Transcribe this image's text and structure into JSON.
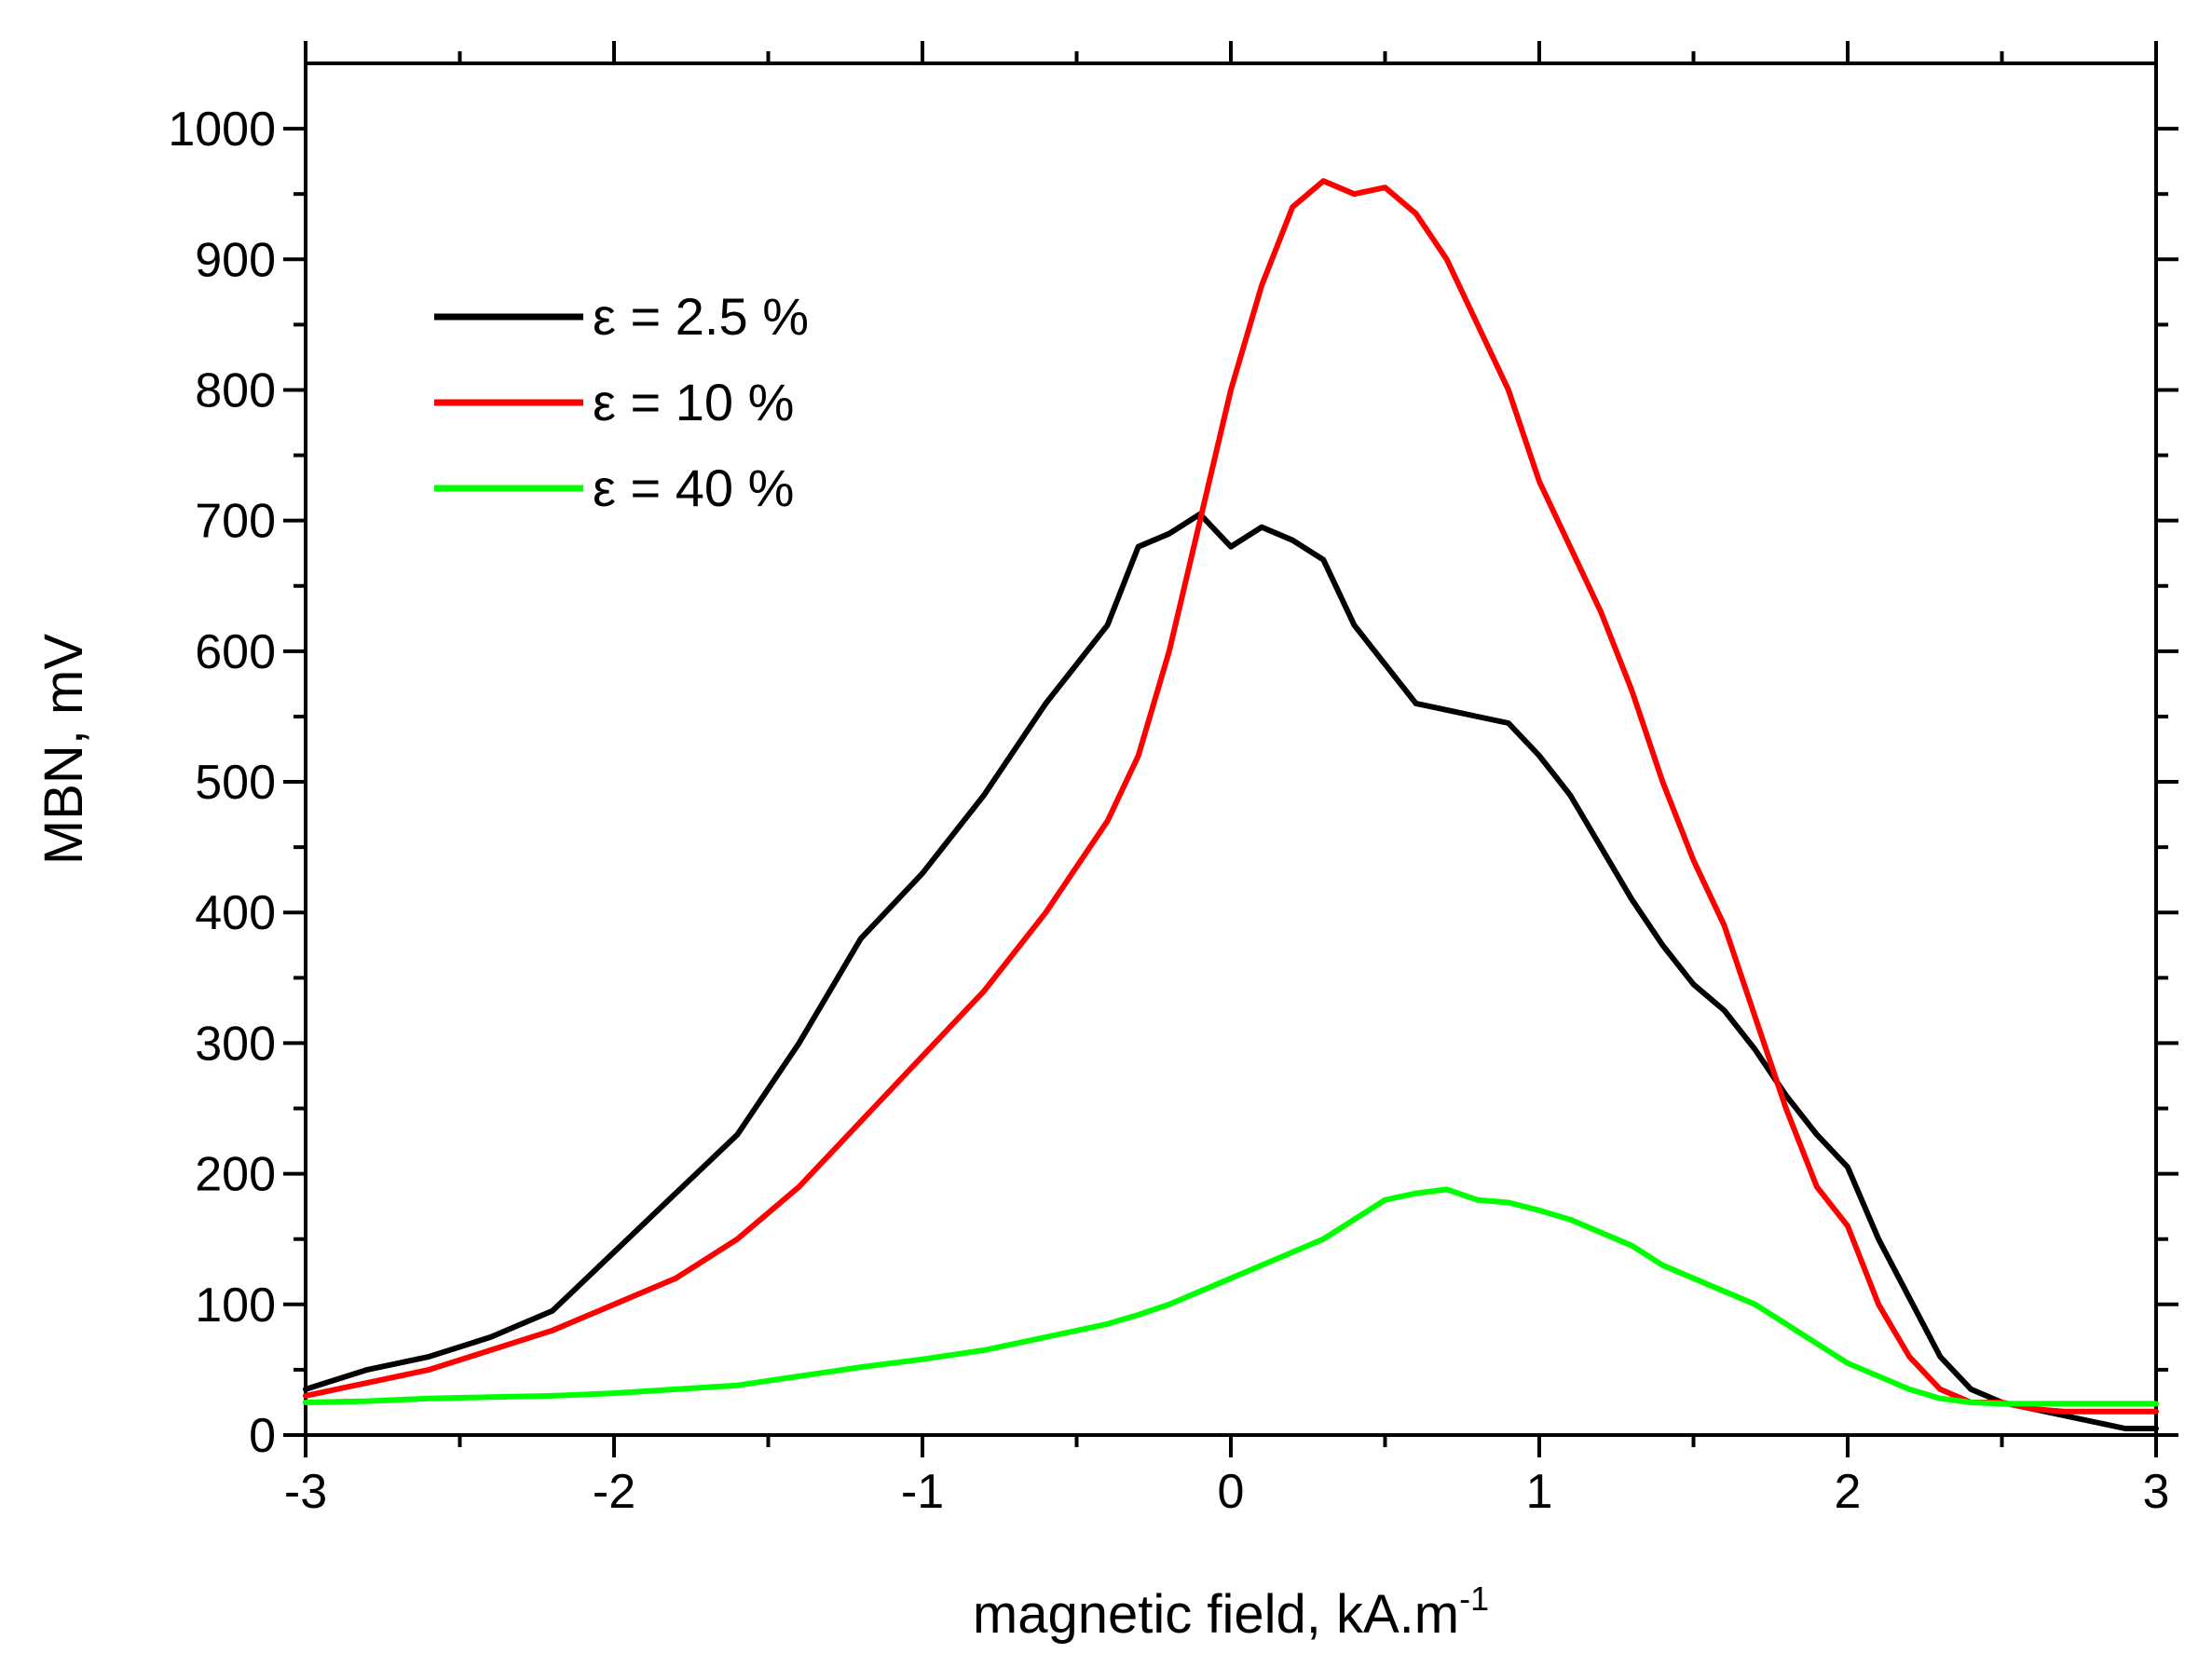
{
  "chart_data": {
    "type": "line",
    "title": "",
    "xlabel": "magnetic field, kA.m",
    "xlabel_superscript": "-1",
    "ylabel": "MBN, mV",
    "xlim": [
      -3,
      3
    ],
    "ylim": [
      0,
      1050
    ],
    "x_ticks": [
      -3,
      -2,
      -1,
      0,
      1,
      2,
      3
    ],
    "x_tick_labels": [
      "-3",
      "-2",
      "-1",
      "0",
      "1",
      "2",
      "3"
    ],
    "x_minor_step": 0.5,
    "y_ticks": [
      0,
      100,
      200,
      300,
      400,
      500,
      600,
      700,
      800,
      900,
      1000
    ],
    "y_tick_labels": [
      "0",
      "100",
      "200",
      "300",
      "400",
      "500",
      "600",
      "700",
      "800",
      "900",
      "1000"
    ],
    "y_minor_step": 50,
    "grid": false,
    "legend_position": "top-left",
    "series": [
      {
        "name": "ε = 2.5 %",
        "color": "#000000",
        "x": [
          -3.0,
          -2.8,
          -2.6,
          -2.4,
          -2.2,
          -2.0,
          -1.8,
          -1.6,
          -1.4,
          -1.2,
          -1.0,
          -0.8,
          -0.6,
          -0.4,
          -0.3,
          -0.2,
          -0.1,
          0.0,
          0.1,
          0.2,
          0.3,
          0.4,
          0.5,
          0.6,
          0.7,
          0.8,
          0.9,
          1.0,
          1.1,
          1.2,
          1.3,
          1.4,
          1.5,
          1.6,
          1.7,
          1.8,
          1.9,
          2.0,
          2.1,
          2.2,
          2.3,
          2.4,
          2.5,
          2.6,
          2.7,
          2.8,
          2.9,
          3.0
        ],
        "values": [
          35,
          50,
          60,
          75,
          95,
          140,
          185,
          230,
          300,
          380,
          430,
          490,
          560,
          620,
          680,
          690,
          705,
          680,
          695,
          685,
          670,
          620,
          590,
          560,
          555,
          550,
          545,
          520,
          490,
          450,
          410,
          375,
          345,
          325,
          295,
          260,
          230,
          205,
          150,
          105,
          60,
          35,
          25,
          20,
          15,
          10,
          5,
          5
        ]
      },
      {
        "name": "ε = 10 %",
        "color": "#ff0000",
        "x": [
          -3.0,
          -2.8,
          -2.6,
          -2.4,
          -2.2,
          -2.0,
          -1.8,
          -1.6,
          -1.4,
          -1.2,
          -1.0,
          -0.8,
          -0.6,
          -0.4,
          -0.3,
          -0.2,
          -0.1,
          0.0,
          0.1,
          0.2,
          0.3,
          0.4,
          0.5,
          0.6,
          0.7,
          0.8,
          0.9,
          1.0,
          1.1,
          1.2,
          1.3,
          1.4,
          1.5,
          1.6,
          1.7,
          1.8,
          1.9,
          2.0,
          2.1,
          2.2,
          2.3,
          2.4,
          2.5,
          2.6,
          2.7,
          2.8,
          2.9,
          3.0
        ],
        "values": [
          30,
          40,
          50,
          65,
          80,
          100,
          120,
          150,
          190,
          240,
          290,
          340,
          400,
          470,
          520,
          600,
          700,
          800,
          880,
          940,
          960,
          950,
          955,
          935,
          900,
          850,
          800,
          730,
          680,
          630,
          570,
          500,
          440,
          390,
          320,
          250,
          190,
          160,
          100,
          60,
          35,
          25,
          25,
          20,
          18,
          18,
          18,
          18
        ]
      },
      {
        "name": "ε = 40 %",
        "color": "#00ff00",
        "x": [
          -3.0,
          -2.8,
          -2.6,
          -2.4,
          -2.2,
          -2.0,
          -1.8,
          -1.6,
          -1.4,
          -1.2,
          -1.0,
          -0.8,
          -0.6,
          -0.4,
          -0.3,
          -0.2,
          -0.1,
          0.0,
          0.1,
          0.2,
          0.3,
          0.4,
          0.5,
          0.6,
          0.7,
          0.8,
          0.9,
          1.0,
          1.1,
          1.2,
          1.3,
          1.4,
          1.5,
          1.6,
          1.7,
          1.8,
          1.9,
          2.0,
          2.1,
          2.2,
          2.3,
          2.4,
          2.5,
          2.6,
          2.7,
          2.8,
          2.9,
          3.0
        ],
        "values": [
          25,
          26,
          28,
          29,
          30,
          32,
          35,
          38,
          45,
          52,
          58,
          65,
          75,
          85,
          92,
          100,
          110,
          120,
          130,
          140,
          150,
          165,
          180,
          185,
          188,
          180,
          178,
          172,
          165,
          155,
          145,
          130,
          120,
          110,
          100,
          85,
          70,
          55,
          45,
          35,
          28,
          25,
          24,
          24,
          24,
          24,
          24,
          24
        ]
      }
    ]
  }
}
